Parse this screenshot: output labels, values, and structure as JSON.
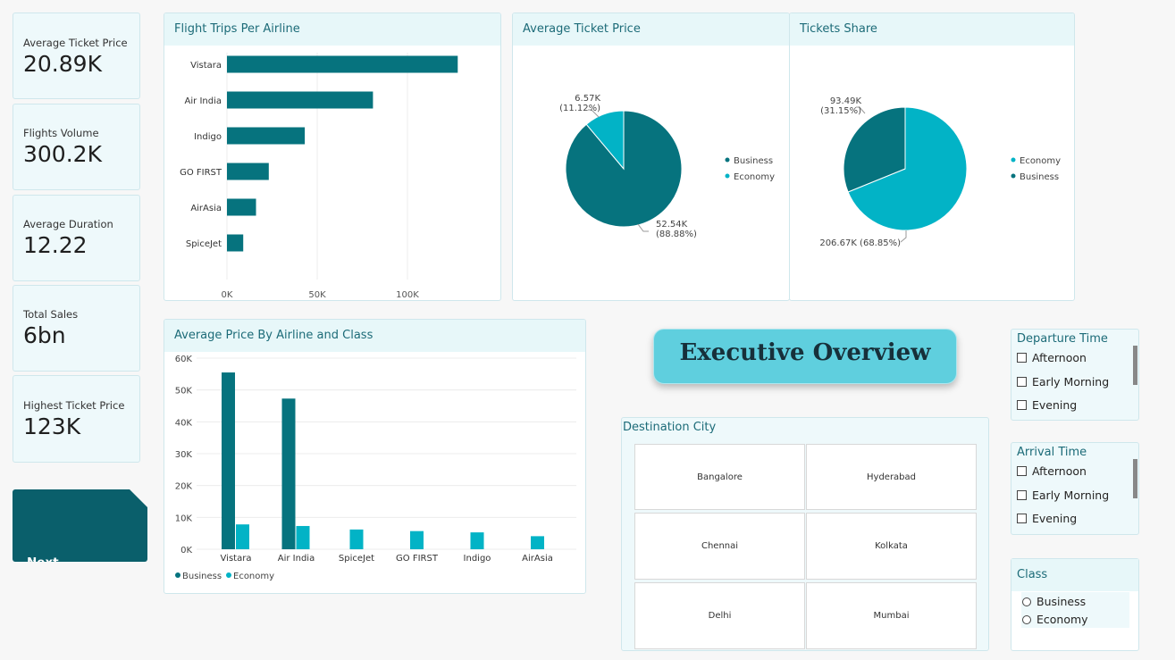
{
  "kpis": [
    {
      "label": "Average Ticket Price",
      "value": "20.89K"
    },
    {
      "label": "Flights Volume",
      "value": "300.2K"
    },
    {
      "label": "Average Duration",
      "value": "12.22"
    },
    {
      "label": "Total Sales",
      "value": "6bn"
    },
    {
      "label": "Highest Ticket Price",
      "value": "123K"
    }
  ],
  "next_page": {
    "label": "Next Page"
  },
  "exec_title": "Executive Overview",
  "destination": {
    "title": "Destination City",
    "cities": [
      "Bangalore",
      "Hyderabad",
      "Chennai",
      "Kolkata",
      "Delhi",
      "Mumbai"
    ]
  },
  "departure": {
    "title": "Departure Time",
    "options": [
      "Afternoon",
      "Early Morning",
      "Evening"
    ]
  },
  "arrival": {
    "title": "Arrival Time",
    "options": [
      "Afternoon",
      "Early Morning",
      "Evening"
    ]
  },
  "class_filter": {
    "title": "Class",
    "options": [
      "Business",
      "Economy"
    ]
  },
  "colors": {
    "business": "#06737e",
    "economy": "#02b3c6"
  },
  "chart_data": [
    {
      "type": "bar",
      "orientation": "horizontal",
      "title": "Flight Trips Per Airline",
      "categories": [
        "Vistara",
        "Air India",
        "Indigo",
        "GO FIRST",
        "AirAsia",
        "SpiceJet"
      ],
      "values": [
        127859,
        80892,
        43120,
        23173,
        16098,
        9011
      ],
      "xticks": [
        "0K",
        "50K",
        "100K"
      ],
      "xlim": [
        0,
        150000
      ],
      "grid": true
    },
    {
      "type": "pie",
      "title": "Average Ticket Price",
      "slices": [
        {
          "name": "Business",
          "value": 52.54,
          "label": "52.54K",
          "pct": "(88.88%)"
        },
        {
          "name": "Economy",
          "value": 6.57,
          "label": "6.57K",
          "pct": "(11.12%)"
        }
      ],
      "legend": "right"
    },
    {
      "type": "pie",
      "title": "Tickets Share",
      "slices": [
        {
          "name": "Economy",
          "value": 206.67,
          "label": "206.67K",
          "pct": "(68.85%)"
        },
        {
          "name": "Business",
          "value": 93.49,
          "label": "93.49K",
          "pct": "(31.15%)"
        }
      ],
      "legend": "right"
    },
    {
      "type": "bar",
      "title": "Average Price By Airline and Class",
      "categories": [
        "Vistara",
        "Air India",
        "SpiceJet",
        "GO FIRST",
        "Indigo",
        "AirAsia"
      ],
      "series": [
        {
          "name": "Business",
          "values": [
            55500,
            47300,
            null,
            null,
            null,
            null
          ]
        },
        {
          "name": "Economy",
          "values": [
            7800,
            7300,
            6200,
            5700,
            5300,
            4100
          ]
        }
      ],
      "yticks": [
        "0K",
        "10K",
        "20K",
        "30K",
        "40K",
        "50K",
        "60K"
      ],
      "ylim": [
        0,
        60000
      ],
      "legend": "bottom-left",
      "grid": true
    }
  ]
}
